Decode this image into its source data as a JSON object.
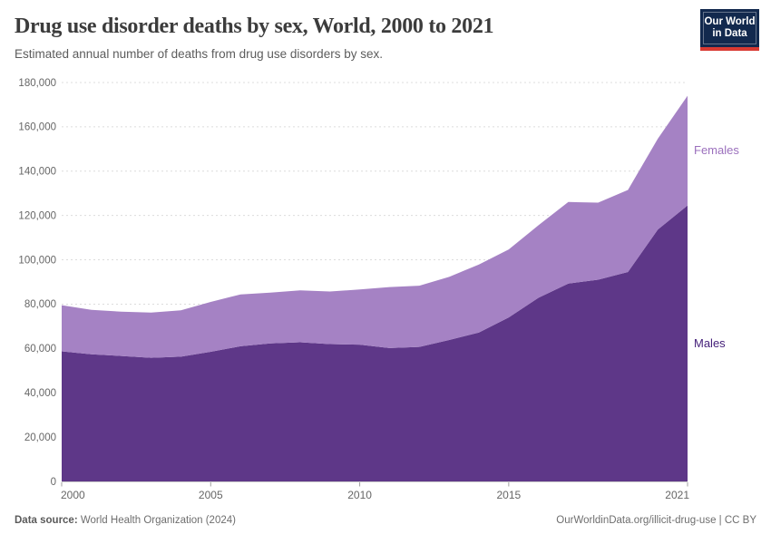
{
  "header": {
    "title": "Drug use disorder deaths by sex, World, 2000 to 2021",
    "subtitle": "Estimated annual number of deaths from drug use disorders by sex.",
    "logo": {
      "line1": "Our World",
      "line2": "in Data",
      "bg_color": "#12294e",
      "accent_color": "#d93a32"
    }
  },
  "footer": {
    "source_label": "Data source:",
    "source_value": "World Health Organization (2024)",
    "link_text": "OurWorldinData.org/illicit-drug-use | CC BY"
  },
  "chart_data": {
    "type": "area",
    "stacked": true,
    "title": "Drug use disorder deaths by sex, World, 2000 to 2021",
    "xlabel": "",
    "ylabel": "",
    "x": [
      2000,
      2001,
      2002,
      2003,
      2004,
      2005,
      2006,
      2007,
      2008,
      2009,
      2010,
      2011,
      2012,
      2013,
      2014,
      2015,
      2016,
      2017,
      2018,
      2019,
      2020,
      2021
    ],
    "series": [
      {
        "name": "Males",
        "color": "#5e3788",
        "label_color": "#45207a",
        "values": [
          58700,
          57400,
          56600,
          55800,
          56300,
          58500,
          61000,
          62300,
          62800,
          62000,
          61700,
          60200,
          60700,
          63800,
          67200,
          74000,
          82900,
          89300,
          91000,
          94500,
          113600,
          124500
        ]
      },
      {
        "name": "Females",
        "color": "#a582c4",
        "label_color": "#9b70bd",
        "values": [
          20800,
          20000,
          20000,
          20400,
          20900,
          22500,
          23400,
          22900,
          23400,
          23700,
          24900,
          27500,
          27600,
          28500,
          30700,
          30700,
          32700,
          36800,
          34800,
          37000,
          41000,
          49500
        ]
      }
    ],
    "xlim": [
      2000,
      2021
    ],
    "ylim": [
      0,
      180000
    ],
    "xticks": [
      2000,
      2005,
      2010,
      2015,
      2021
    ],
    "ytick_interval": 20000,
    "ytick_labels": [
      "0",
      "20,000",
      "40,000",
      "60,000",
      "80,000",
      "100,000",
      "120,000",
      "140,000",
      "160,000",
      "180,000"
    ],
    "grid": "dashed-horizontal",
    "legend_position": "right-edge-labels",
    "style": {
      "grid_color": "#dcdcdc",
      "axis_line_color": "#cccccc",
      "tick_color": "#a0a0a0",
      "axis_text_color": "#666666"
    }
  }
}
